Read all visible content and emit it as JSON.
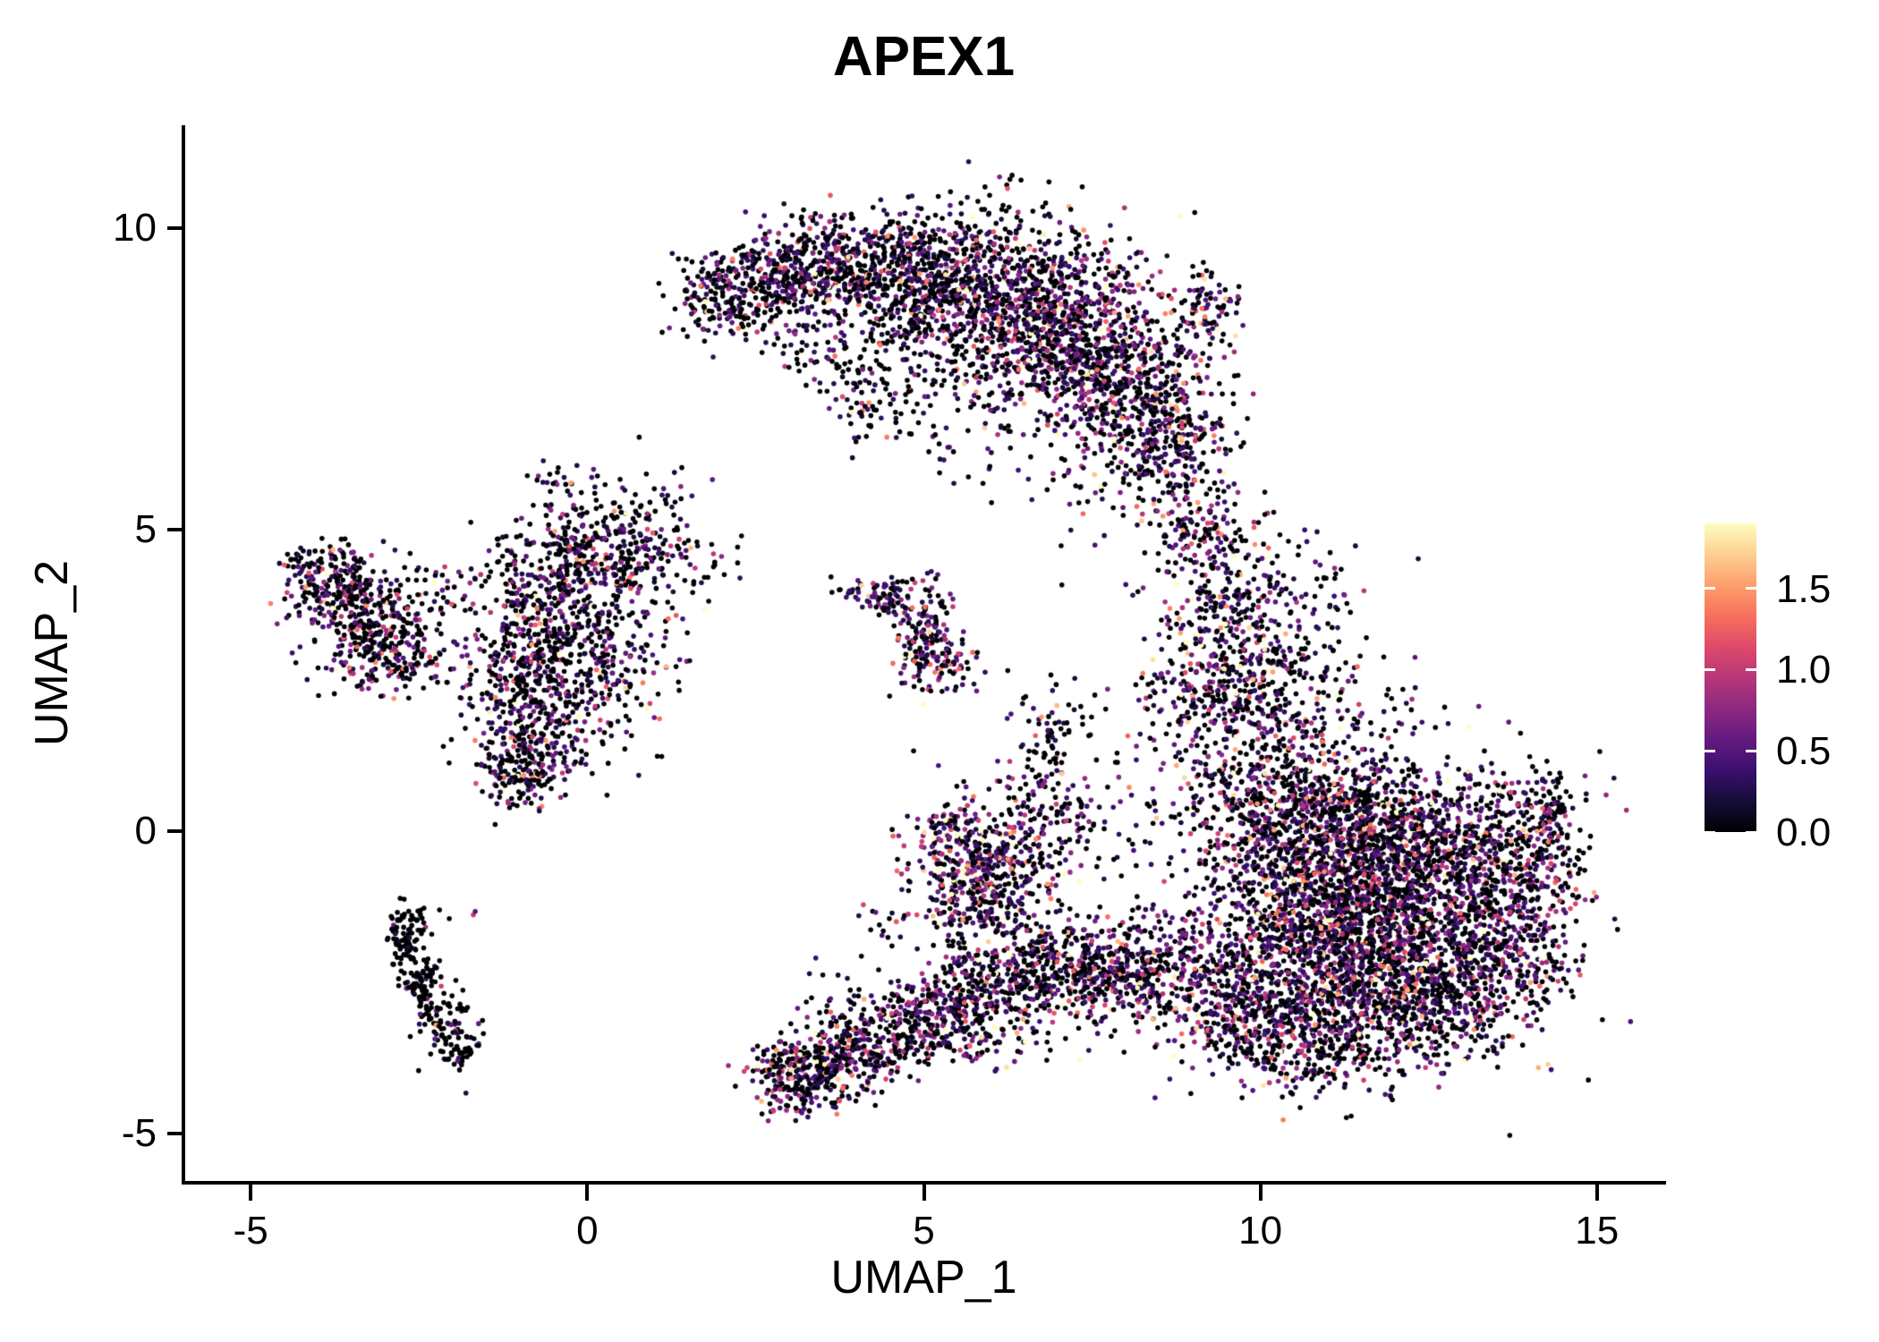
{
  "title": "APEX1",
  "axes": {
    "x": {
      "label": "UMAP_1",
      "range": [
        -6,
        16
      ],
      "tick_values": [
        -5,
        0,
        5,
        10,
        15
      ],
      "tick_labels": [
        "-5",
        "0",
        "5",
        "10",
        "15"
      ]
    },
    "y": {
      "label": "UMAP_2",
      "range": [
        -5.79,
        11.7
      ],
      "tick_values": [
        -5,
        0,
        5,
        10
      ],
      "tick_labels": [
        "-5",
        "0",
        "5",
        "10"
      ]
    }
  },
  "colorbar": {
    "vmin": 0.0,
    "vmax": 1.9,
    "tick_values": [
      1.5,
      1.0,
      0.5,
      0.0
    ],
    "tick_labels": [
      "1.5",
      "1.0",
      "0.5",
      "0.0"
    ],
    "colormap_stops": [
      "#000004",
      "#140e36",
      "#3b0f70",
      "#641a80",
      "#8c2981",
      "#b73779",
      "#de4968",
      "#f7705c",
      "#fe9f6d",
      "#fecf92",
      "#fcfdbf"
    ]
  },
  "chart_data": {
    "type": "scatter",
    "title": "APEX1",
    "xlabel": "UMAP_1",
    "ylabel": "UMAP_2",
    "xlim": [
      -6,
      16
    ],
    "ylim": [
      -5.79,
      11.7
    ],
    "grid": false,
    "legend_position": "right",
    "point_radius_px": 2.8,
    "seed": 42,
    "colormap": "magma",
    "value_min": 0.0,
    "value_max": 1.9,
    "cluster_fields": [
      "n",
      "cx",
      "cy",
      "sx",
      "sy",
      "zero_frac",
      "expr_mean"
    ],
    "clusters": [
      [
        220,
        2.1,
        8.9,
        0.45,
        0.35,
        0.5,
        0.45
      ],
      [
        320,
        3.1,
        9.3,
        0.55,
        0.45,
        0.5,
        0.45
      ],
      [
        420,
        4.4,
        9.3,
        0.7,
        0.5,
        0.5,
        0.45
      ],
      [
        650,
        5.7,
        9.0,
        0.8,
        0.65,
        0.5,
        0.45
      ],
      [
        750,
        6.9,
        8.4,
        0.8,
        0.75,
        0.45,
        0.5
      ],
      [
        550,
        7.9,
        7.4,
        0.65,
        0.75,
        0.45,
        0.5
      ],
      [
        260,
        8.7,
        6.4,
        0.45,
        0.6,
        0.5,
        0.45
      ],
      [
        90,
        9.2,
        8.6,
        0.25,
        0.4,
        0.5,
        0.45
      ],
      [
        140,
        5.0,
        7.9,
        0.9,
        0.5,
        0.55,
        0.4
      ],
      [
        70,
        4.2,
        7.0,
        0.5,
        0.45,
        0.6,
        0.4
      ],
      [
        40,
        3.4,
        7.9,
        0.4,
        0.3,
        0.6,
        0.4
      ],
      [
        25,
        5.9,
        6.3,
        0.5,
        0.4,
        0.6,
        0.4
      ],
      [
        18,
        7.3,
        5.6,
        0.4,
        0.5,
        0.6,
        0.4
      ],
      [
        160,
        9.2,
        4.8,
        0.45,
        0.55,
        0.5,
        0.5
      ],
      [
        300,
        9.7,
        3.4,
        0.6,
        0.7,
        0.45,
        0.5
      ],
      [
        330,
        9.6,
        2.1,
        0.7,
        0.6,
        0.45,
        0.5
      ],
      [
        60,
        10.7,
        2.7,
        0.5,
        0.5,
        0.55,
        0.45
      ],
      [
        30,
        10.8,
        4.0,
        0.5,
        0.4,
        0.6,
        0.4
      ],
      [
        20,
        11.8,
        2.0,
        0.5,
        0.4,
        0.6,
        0.4
      ],
      [
        500,
        10.2,
        0.4,
        0.75,
        0.7,
        0.45,
        0.5
      ],
      [
        650,
        11.4,
        0.1,
        0.9,
        0.7,
        0.45,
        0.5
      ],
      [
        550,
        12.7,
        -0.2,
        0.85,
        0.65,
        0.45,
        0.5
      ],
      [
        750,
        10.8,
        -1.2,
        0.85,
        0.75,
        0.45,
        0.5
      ],
      [
        750,
        12.2,
        -1.5,
        0.95,
        0.75,
        0.45,
        0.5
      ],
      [
        650,
        11.2,
        -2.6,
        0.95,
        0.65,
        0.45,
        0.5
      ],
      [
        380,
        12.8,
        -2.7,
        0.75,
        0.55,
        0.45,
        0.5
      ],
      [
        280,
        10.1,
        -3.2,
        0.65,
        0.5,
        0.45,
        0.5
      ],
      [
        230,
        13.9,
        -0.6,
        0.5,
        0.75,
        0.5,
        0.45
      ],
      [
        220,
        13.7,
        -2.0,
        0.55,
        0.55,
        0.5,
        0.45
      ],
      [
        240,
        9.4,
        -2.4,
        0.55,
        0.6,
        0.45,
        0.5
      ],
      [
        120,
        11.0,
        -3.8,
        0.7,
        0.3,
        0.5,
        0.45
      ],
      [
        80,
        14.3,
        0.3,
        0.25,
        0.35,
        0.5,
        0.45
      ],
      [
        130,
        -3.8,
        4.2,
        0.35,
        0.3,
        0.55,
        0.45
      ],
      [
        280,
        -3.3,
        3.5,
        0.45,
        0.45,
        0.55,
        0.45
      ],
      [
        140,
        -2.8,
        2.9,
        0.4,
        0.3,
        0.55,
        0.45
      ],
      [
        50,
        -2.3,
        4.0,
        0.35,
        0.3,
        0.6,
        0.4
      ],
      [
        25,
        -4.2,
        4.4,
        0.2,
        0.2,
        0.6,
        0.4
      ],
      [
        220,
        -0.4,
        4.4,
        0.55,
        0.45,
        0.5,
        0.45
      ],
      [
        170,
        0.5,
        4.6,
        0.45,
        0.35,
        0.5,
        0.45
      ],
      [
        280,
        -0.6,
        3.4,
        0.5,
        0.55,
        0.5,
        0.45
      ],
      [
        170,
        0.3,
        3.0,
        0.55,
        0.45,
        0.5,
        0.45
      ],
      [
        160,
        -1.0,
        2.2,
        0.4,
        0.45,
        0.5,
        0.45
      ],
      [
        240,
        -0.9,
        1.2,
        0.4,
        0.4,
        0.5,
        0.45
      ],
      [
        100,
        0.0,
        1.9,
        0.5,
        0.45,
        0.55,
        0.4
      ],
      [
        45,
        -0.3,
        5.6,
        0.35,
        0.3,
        0.55,
        0.4
      ],
      [
        35,
        0.9,
        5.5,
        0.35,
        0.3,
        0.55,
        0.4
      ],
      [
        55,
        1.4,
        4.5,
        0.4,
        0.35,
        0.55,
        0.4
      ],
      [
        30,
        -1.5,
        3.0,
        0.3,
        0.4,
        0.55,
        0.4
      ],
      [
        60,
        4.2,
        4.0,
        0.3,
        0.15,
        0.4,
        0.5
      ],
      [
        140,
        5.0,
        3.3,
        0.22,
        0.45,
        0.4,
        0.5
      ],
      [
        70,
        5.3,
        2.8,
        0.3,
        0.25,
        0.4,
        0.5
      ],
      [
        20,
        4.6,
        3.8,
        0.15,
        0.15,
        0.4,
        0.5
      ],
      [
        70,
        -2.7,
        -1.8,
        0.12,
        0.28,
        0.85,
        0.3
      ],
      [
        80,
        -2.45,
        -2.5,
        0.13,
        0.3,
        0.85,
        0.3
      ],
      [
        80,
        -2.1,
        -3.2,
        0.16,
        0.33,
        0.85,
        0.3
      ],
      [
        30,
        -1.85,
        -3.7,
        0.12,
        0.18,
        0.85,
        0.3
      ],
      [
        20,
        -2.55,
        -1.45,
        0.2,
        0.1,
        0.85,
        0.3
      ],
      [
        2,
        -1.65,
        -1.35,
        0.05,
        0.05,
        0.0,
        0.5
      ],
      [
        280,
        3.2,
        -4.0,
        0.38,
        0.32,
        0.45,
        0.5
      ],
      [
        220,
        4.0,
        -3.6,
        0.45,
        0.35,
        0.45,
        0.5
      ],
      [
        220,
        4.9,
        -3.2,
        0.45,
        0.35,
        0.45,
        0.5
      ],
      [
        260,
        5.8,
        -2.8,
        0.5,
        0.45,
        0.45,
        0.5
      ],
      [
        230,
        6.6,
        -2.4,
        0.5,
        0.45,
        0.45,
        0.5
      ],
      [
        230,
        7.4,
        -2.2,
        0.5,
        0.45,
        0.45,
        0.5
      ],
      [
        230,
        8.3,
        -2.3,
        0.5,
        0.5,
        0.45,
        0.5
      ],
      [
        300,
        5.6,
        -0.3,
        0.45,
        0.55,
        0.3,
        0.7
      ],
      [
        180,
        5.9,
        -1.3,
        0.4,
        0.45,
        0.45,
        0.5
      ],
      [
        130,
        6.4,
        -0.6,
        0.4,
        0.5,
        0.45,
        0.5
      ],
      [
        90,
        6.8,
        0.7,
        0.3,
        0.8,
        0.55,
        0.45
      ],
      [
        70,
        7.4,
        0.2,
        0.5,
        0.8,
        0.55,
        0.45
      ],
      [
        35,
        6.9,
        1.9,
        0.3,
        0.4,
        0.6,
        0.4
      ],
      [
        25,
        4.6,
        -1.6,
        0.4,
        0.4,
        0.55,
        0.45
      ],
      [
        20,
        3.6,
        -2.9,
        0.3,
        0.3,
        0.55,
        0.45
      ],
      [
        12,
        2.9,
        -4.3,
        0.15,
        0.15,
        0.6,
        0.4
      ],
      [
        10,
        8.8,
        -3.6,
        0.4,
        0.3,
        0.55,
        0.45
      ]
    ]
  }
}
